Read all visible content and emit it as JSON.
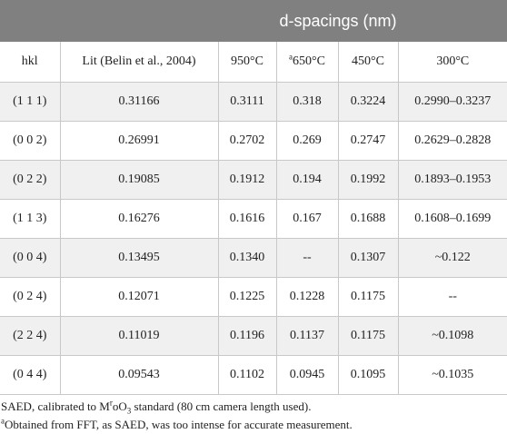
{
  "title": "d-spacings (nm)",
  "headers": {
    "hkl": "hkl",
    "lit": "Lit (Belin et al., 2004)",
    "t950": "950°C",
    "t650_mark": "a",
    "t650": "650°C",
    "t450": "450°C",
    "t300": "300°C"
  },
  "rows": [
    [
      "(1 1 1)",
      "0.31166",
      "0.3111",
      "0.318",
      "0.3224",
      "0.2990–0.3237"
    ],
    [
      "(0 0 2)",
      "0.26991",
      "0.2702",
      "0.269",
      "0.2747",
      "0.2629–0.2828"
    ],
    [
      "(0 2 2)",
      "0.19085",
      "0.1912",
      "0.194",
      "0.1992",
      "0.1893–0.1953"
    ],
    [
      "(1 1 3)",
      "0.16276",
      "0.1616",
      "0.167",
      "0.1688",
      "0.1608–0.1699"
    ],
    [
      "(0 0 4)",
      "0.13495",
      "0.1340",
      "--",
      "0.1307",
      "~0.122"
    ],
    [
      "(0 2 4)",
      "0.12071",
      "0.1225",
      "0.1228",
      "0.1175",
      "--"
    ],
    [
      "(2 2 4)",
      "0.11019",
      "0.1196",
      "0.1137",
      "0.1175",
      "~0.1098"
    ],
    [
      "(0 4 4)",
      "0.09543",
      "0.1102",
      "0.0945",
      "0.1095",
      "~0.1035"
    ]
  ],
  "notes": {
    "note1_pre": "SAED, calibrated to M",
    "note1_sup": "r",
    "note1_mid": "oO",
    "note1_sub": "3",
    "note1_post": " standard (80 cm camera length used).",
    "note2_mark": "a",
    "note2_text": "Obtained from FFT, as SAED, was too intense for accurate measurement."
  }
}
